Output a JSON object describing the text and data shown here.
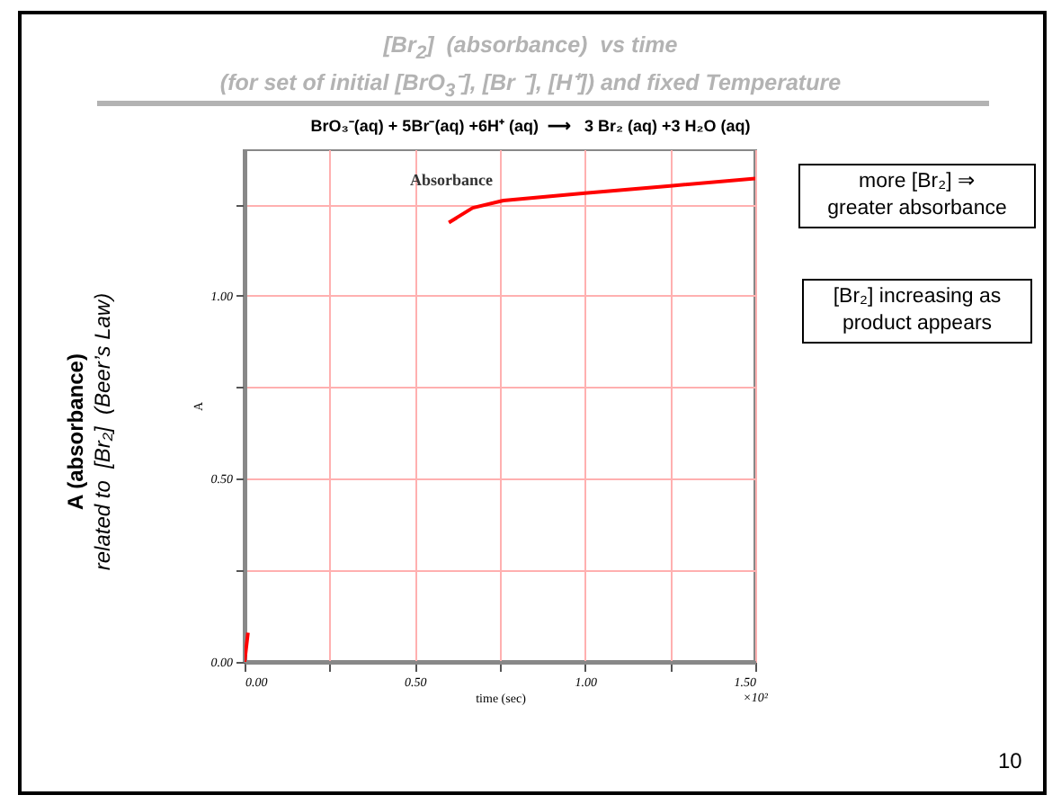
{
  "chart_data": {
    "type": "line",
    "title": "[Br$_{2}$]  (absorbance)  vs time",
    "subtitle": "(for set of initial [BrO$_{3}$⁻], [Br ⁻], [H⁺]) and fixed Temperature",
    "xlabel": "time (sec)",
    "ylabel": "A",
    "x": [
      0,
      0.01,
      0.3,
      0.6,
      0.67,
      0.76,
      1.0,
      1.25,
      1.5
    ],
    "series": [
      {
        "color": "#ff0000",
        "values": [
          0,
          0.08,
          null,
          1.2,
          1.24,
          1.26,
          1.28,
          1.3,
          1.32
        ]
      }
    ],
    "xlim": [
      0,
      1.5
    ],
    "xticks": [
      {
        "value": 0,
        "label": "0.00"
      },
      {
        "value": 0.25,
        "label": null
      },
      {
        "value": 0.5,
        "label": "0.50"
      },
      {
        "value": 0.75,
        "label": null
      },
      {
        "value": 1,
        "label": "1.00"
      },
      {
        "value": 1.25,
        "label": null
      },
      {
        "value": 1.5,
        "label": "1.50"
      }
    ],
    "ylim": [
      0,
      1.4
    ],
    "yticks": [
      {
        "value": 0,
        "label": "0.00"
      },
      {
        "value": 0.25,
        "label": null
      },
      {
        "value": 0.5,
        "label": "0.50"
      },
      {
        "value": 0.75,
        "label": null
      },
      {
        "value": 1,
        "label": "1.00"
      },
      {
        "value": 1.25,
        "label": null
      }
    ],
    "grid": true,
    "annotations": [
      "BrO₃⁻(aq) + 5Br⁻(aq) +6H⁺ (aq)  ⟶   3 Br₂ (aq) +3 H₂O (aq)",
      "more [Br₂] ⇒\ngreater absorbance",
      "[Br₂] increasing as\nproduct appears",
      "×10²",
      "10",
      "Absorbance",
      "A (absorbance)",
      "related to  [Br₂]  (Beer’s Law)"
    ]
  }
}
